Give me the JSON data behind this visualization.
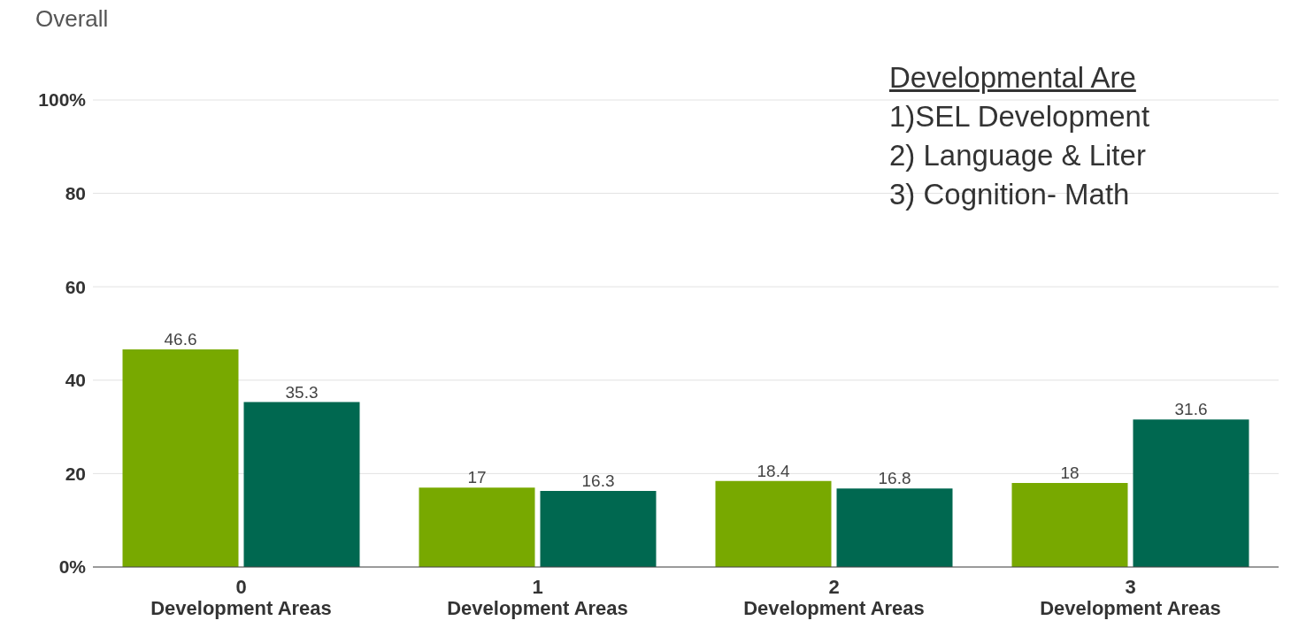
{
  "chart_data": {
    "type": "bar",
    "title": "Overall",
    "categories": [
      "0\nDevelopment Areas",
      "1\nDevelopment Areas",
      "2\nDevelopment Areas",
      "3\nDevelopment Areas"
    ],
    "series": [
      {
        "color": "#78a900",
        "values": [
          46.6,
          17,
          18.4,
          18
        ]
      },
      {
        "color": "#006850",
        "values": [
          35.3,
          16.3,
          16.8,
          31.6
        ]
      }
    ],
    "ylim": [
      0,
      100
    ],
    "yticks": [
      {
        "value": 0,
        "label": "0%"
      },
      20,
      40,
      60,
      80,
      {
        "value": 100,
        "label": "100%"
      }
    ],
    "grid": "y",
    "legend": false,
    "data_labels": true,
    "annotations": [
      "Developmental Are",
      "1)SEL Development",
      "2) Language & Liter",
      "3) Cognition- Math"
    ]
  }
}
